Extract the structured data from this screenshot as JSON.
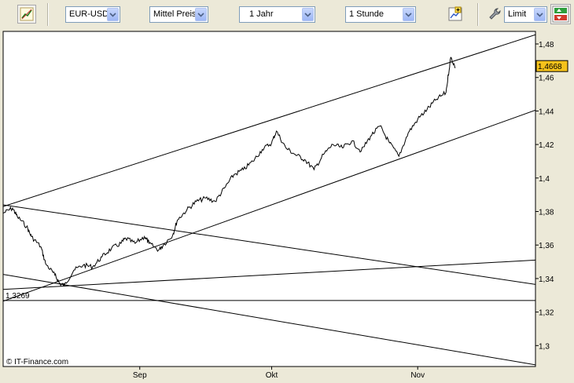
{
  "toolbar": {
    "symbol": "EUR-USD",
    "price_type": "Mittel Preis",
    "period": "1 Jahr",
    "interval": "1 Stunde",
    "order_type": "Limit"
  },
  "icons": {
    "draw": "trend-line-icon",
    "chart_settings": "chart-settings-icon",
    "order": "wrench-icon",
    "buy_sell": "buy-sell-icon"
  },
  "chart_data": {
    "type": "line",
    "title": "",
    "xlabel": "",
    "ylabel": "",
    "ylim": [
      1.2875,
      1.4875
    ],
    "y_ticks": [
      {
        "value": 1.48,
        "label": "1,48"
      },
      {
        "value": 1.46,
        "label": "1,46"
      },
      {
        "value": 1.44,
        "label": "1,44"
      },
      {
        "value": 1.42,
        "label": "1,42"
      },
      {
        "value": 1.4,
        "label": "1,4"
      },
      {
        "value": 1.38,
        "label": "1,38"
      },
      {
        "value": 1.36,
        "label": "1,36"
      },
      {
        "value": 1.34,
        "label": "1,34"
      },
      {
        "value": 1.32,
        "label": "1,32"
      },
      {
        "value": 1.3,
        "label": "1,3"
      }
    ],
    "x_ticks": [
      {
        "date": "2007-09-03",
        "label": "Sep"
      },
      {
        "date": "2007-10-01",
        "label": "Okt"
      },
      {
        "date": "2007-11-01",
        "label": "Nov"
      }
    ],
    "x_range": [
      "2007-08-05",
      "2007-11-26"
    ],
    "current_price": {
      "value": 1.4668,
      "label": "1,4668"
    },
    "horizontal_line": {
      "value": 1.3269,
      "label": "1,3269"
    },
    "trend_lines": [
      {
        "from": [
          "2007-08-05",
          1.383
        ],
        "to": [
          "2007-11-26",
          1.4855
        ]
      },
      {
        "from": [
          "2007-08-05",
          1.3265
        ],
        "to": [
          "2007-11-26",
          1.4405
        ]
      },
      {
        "from": [
          "2007-08-05",
          1.384
        ],
        "to": [
          "2007-11-26",
          1.3365
        ]
      },
      {
        "from": [
          "2007-08-05",
          1.3425
        ],
        "to": [
          "2007-11-26",
          1.2885
        ]
      },
      {
        "from": [
          "2007-08-05",
          1.3335
        ],
        "to": [
          "2007-11-26",
          1.351
        ]
      }
    ],
    "series": [
      {
        "x": [
          "2007-08-05",
          "2007-08-07",
          "2007-08-08",
          "2007-08-10",
          "2007-08-11",
          "2007-08-13",
          "2007-08-14",
          "2007-08-16",
          "2007-08-17",
          "2007-08-18",
          "2007-08-20",
          "2007-08-22",
          "2007-08-24",
          "2007-08-26",
          "2007-08-28",
          "2007-08-30",
          "2007-08-31",
          "2007-09-02",
          "2007-09-04",
          "2007-09-05",
          "2007-09-07",
          "2007-09-08",
          "2007-09-10",
          "2007-09-11",
          "2007-09-13",
          "2007-09-15",
          "2007-09-17",
          "2007-09-19",
          "2007-09-21",
          "2007-09-23",
          "2007-09-25",
          "2007-09-27",
          "2007-09-29",
          "2007-10-01",
          "2007-10-02",
          "2007-10-04",
          "2007-10-06",
          "2007-10-08",
          "2007-10-10",
          "2007-10-12",
          "2007-10-14",
          "2007-10-16",
          "2007-10-18",
          "2007-10-20",
          "2007-10-22",
          "2007-10-24",
          "2007-10-26",
          "2007-10-28",
          "2007-10-30",
          "2007-11-01",
          "2007-11-03",
          "2007-11-05",
          "2007-11-07",
          "2007-11-08",
          "2007-11-09"
        ],
        "values": [
          1.379,
          1.382,
          1.377,
          1.371,
          1.365,
          1.359,
          1.349,
          1.342,
          1.337,
          1.336,
          1.345,
          1.348,
          1.347,
          1.353,
          1.358,
          1.361,
          1.364,
          1.361,
          1.365,
          1.361,
          1.357,
          1.36,
          1.366,
          1.375,
          1.381,
          1.386,
          1.388,
          1.386,
          1.394,
          1.402,
          1.405,
          1.41,
          1.417,
          1.421,
          1.428,
          1.418,
          1.414,
          1.411,
          1.405,
          1.414,
          1.42,
          1.418,
          1.422,
          1.416,
          1.425,
          1.431,
          1.421,
          1.413,
          1.427,
          1.435,
          1.441,
          1.447,
          1.451,
          1.472,
          1.466
        ]
      }
    ]
  }
}
